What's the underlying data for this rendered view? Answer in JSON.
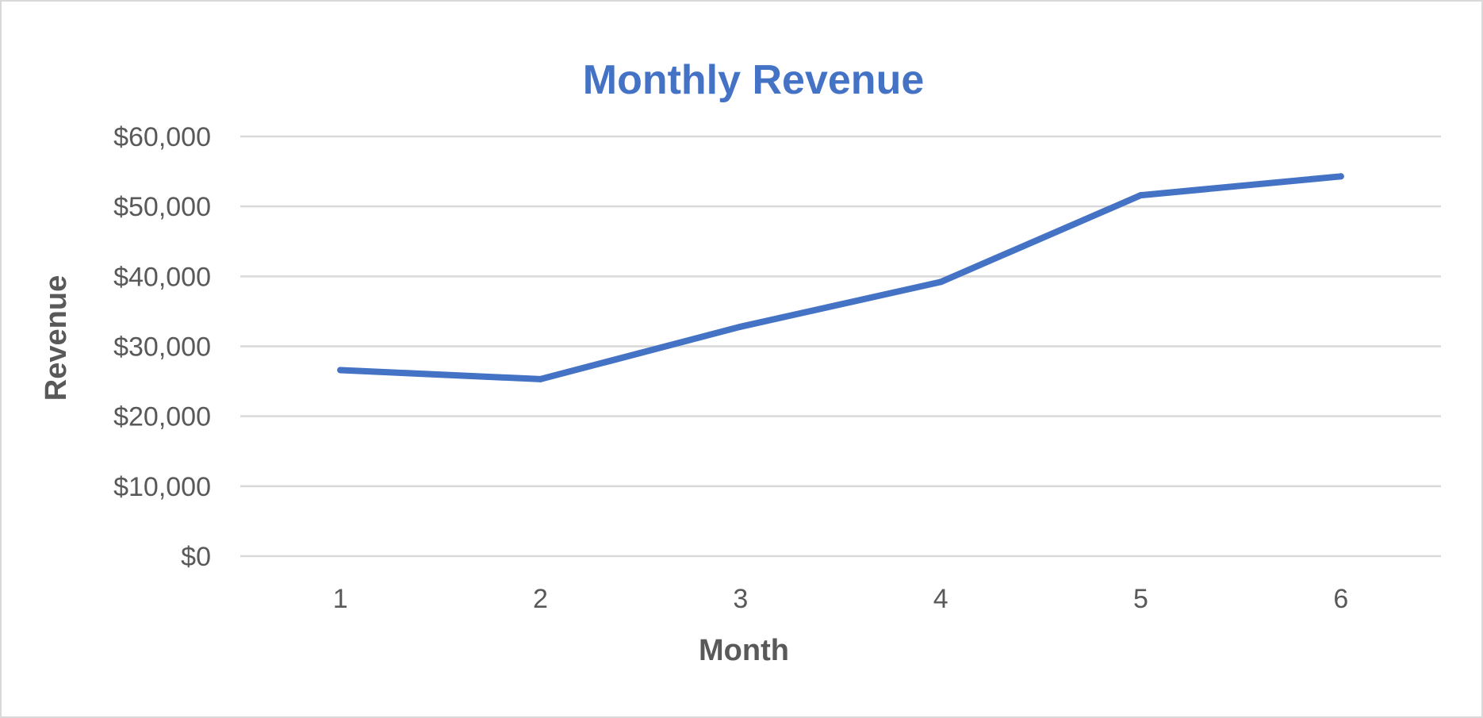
{
  "chart_data": {
    "type": "line",
    "title": "Monthly Revenue",
    "xlabel": "Month",
    "ylabel": "Revenue",
    "categories": [
      "1",
      "2",
      "3",
      "4",
      "5",
      "6"
    ],
    "series": [
      {
        "values": [
          26600,
          25300,
          32800,
          39200,
          51600,
          54300
        ]
      }
    ],
    "ylim": [
      0,
      60000
    ],
    "yticks": [
      0,
      10000,
      20000,
      30000,
      40000,
      50000,
      60000
    ],
    "ytick_labels": [
      "$0",
      "$10,000",
      "$20,000",
      "$30,000",
      "$40,000",
      "$50,000",
      "$60,000"
    ],
    "grid": "horizontal",
    "legend": "none"
  },
  "colors": {
    "title": "#4472C4",
    "line": "#4472C4",
    "gridline": "#d9d9d9",
    "axis_text": "#595959",
    "frame": "#d9d9d9"
  }
}
